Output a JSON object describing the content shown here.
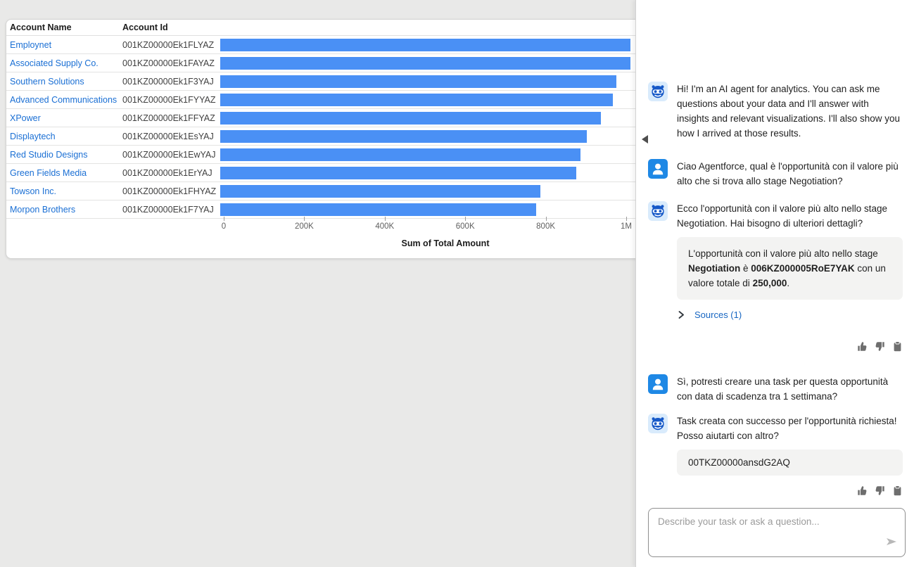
{
  "colors": {
    "bar": "#4a90f5",
    "account_link": "#1a6fd4",
    "sources_link": "#1766c2",
    "user_avatar": "#1e88e5",
    "bot_avatar_bg": "#d9ebfc",
    "bot_avatar_fg": "#1659c8",
    "gray_card_bg": "#f3f3f2"
  },
  "table": {
    "headers": [
      "Account Name",
      "Account Id"
    ]
  },
  "chart_data": {
    "type": "bar",
    "orientation": "horizontal",
    "categories": [
      "Employnet",
      "Associated Supply Co.",
      "Southern Solutions",
      "Advanced Communications",
      "XPower",
      "Displaytech",
      "Red Studio Designs",
      "Green Fields Media",
      "Towson Inc.",
      "Morpon Brothers"
    ],
    "account_ids": [
      "001KZ00000Ek1FLYAZ",
      "001KZ00000Ek1FAYAZ",
      "001KZ00000Ek1F3YAJ",
      "001KZ00000Ek1FYYAZ",
      "001KZ00000Ek1FFYAZ",
      "001KZ00000Ek1EsYAJ",
      "001KZ00000Ek1EwYAJ",
      "001KZ00000Ek1ErYAJ",
      "001KZ00000Ek1FHYAZ",
      "001KZ00000Ek1F7YAJ"
    ],
    "values": [
      1020000,
      1020000,
      985000,
      975000,
      945000,
      910000,
      895000,
      885000,
      795000,
      785000
    ],
    "xlim": [
      0,
      1000000
    ],
    "ticks": [
      0,
      200000,
      400000,
      600000,
      800000,
      1000000
    ],
    "tick_labels": [
      "0",
      "200K",
      "400K",
      "600K",
      "800K",
      "1M"
    ],
    "axis_title": "Sum of Total Amount",
    "grid": false,
    "note": "first two bars are clipped by the chat panel at the right edge"
  },
  "chat": {
    "messages": [
      {
        "role": "bot",
        "text": "Hi! I'm an AI agent for analytics. You can ask me questions about your data and I'll answer with insights and relevant visualizations. I'll also show you how I arrived at those results."
      },
      {
        "role": "user",
        "text": "Ciao Agentforce, qual è l'opportunità con il valore più alto che si trova allo stage Negotiation?"
      },
      {
        "role": "bot",
        "text": "Ecco l'opportunità con il valore più alto nello stage Negotiation. Hai bisogno di ulteriori dettagli?"
      },
      {
        "role": "user",
        "text": "Sì, potresti creare una task per questa opportunità con data di scadenza tra 1 settimana?"
      },
      {
        "role": "bot",
        "text": "Task creata con successo per l'opportunità richiesta! Posso aiutarti con altro?"
      }
    ],
    "answer_card": {
      "p1": "L'opportunità con il valore più alto nello stage ",
      "b1": "Negotiation",
      "p2": " è ",
      "b2": "006KZ000005RoE7YAK",
      "p3": " con un valore totale di ",
      "b3": "250,000",
      "p4": "."
    },
    "sources_label": "Sources (1)",
    "task_card_text": "00TKZ00000ansdG2AQ",
    "input_placeholder": "Describe your task or ask a question...",
    "feedback_icons": [
      "thumbs-up",
      "thumbs-down",
      "copy-to-clipboard"
    ]
  }
}
